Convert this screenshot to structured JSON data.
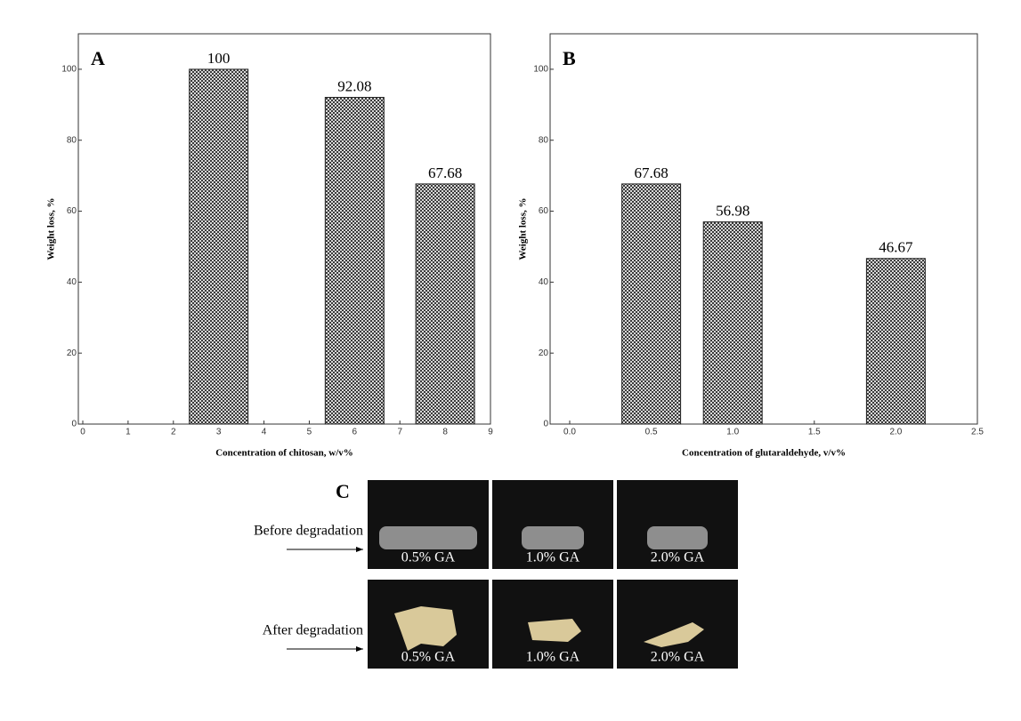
{
  "chart_data": [
    {
      "type": "bar",
      "panel_label": "A",
      "x_label": "Concentration of chitosan, w/v%",
      "y_label": "Weight loss, %",
      "x": [
        3,
        6,
        8
      ],
      "values": [
        100,
        92.08,
        67.68
      ],
      "xlim": [
        0,
        9
      ],
      "xticks": [
        0,
        1,
        2,
        3,
        4,
        5,
        6,
        7,
        8,
        9
      ],
      "ylim": [
        0,
        110
      ],
      "yticks": [
        0,
        20,
        40,
        60,
        80,
        100
      ],
      "grid": false
    },
    {
      "type": "bar",
      "panel_label": "B",
      "x_label": "Concentration of glutaraldehyde, v/v%",
      "y_label": "Weight loss, %",
      "x": [
        0.5,
        1.0,
        2.0
      ],
      "values": [
        67.68,
        56.98,
        46.67
      ],
      "xlim": [
        0,
        2.5
      ],
      "xticks": [
        {
          "value": 0,
          "label": "0.0"
        },
        {
          "value": 0.5,
          "label": "0.5"
        },
        {
          "value": 1,
          "label": "1.0"
        },
        {
          "value": 1.5,
          "label": "1.5"
        },
        {
          "value": 2,
          "label": "2.0"
        },
        {
          "value": 2.5,
          "label": "2.5"
        }
      ],
      "ylim": [
        0,
        110
      ],
      "yticks": [
        0,
        20,
        40,
        60,
        80,
        100
      ],
      "grid": false
    }
  ],
  "panel_c": {
    "label": "C",
    "rows": [
      {
        "label": "Before degradation",
        "samples": [
          "0.5% GA",
          "1.0% GA",
          "2.0% GA"
        ]
      },
      {
        "label": "After degradation",
        "samples": [
          "0.5% GA",
          "1.0% GA",
          "2.0% GA"
        ]
      }
    ]
  }
}
